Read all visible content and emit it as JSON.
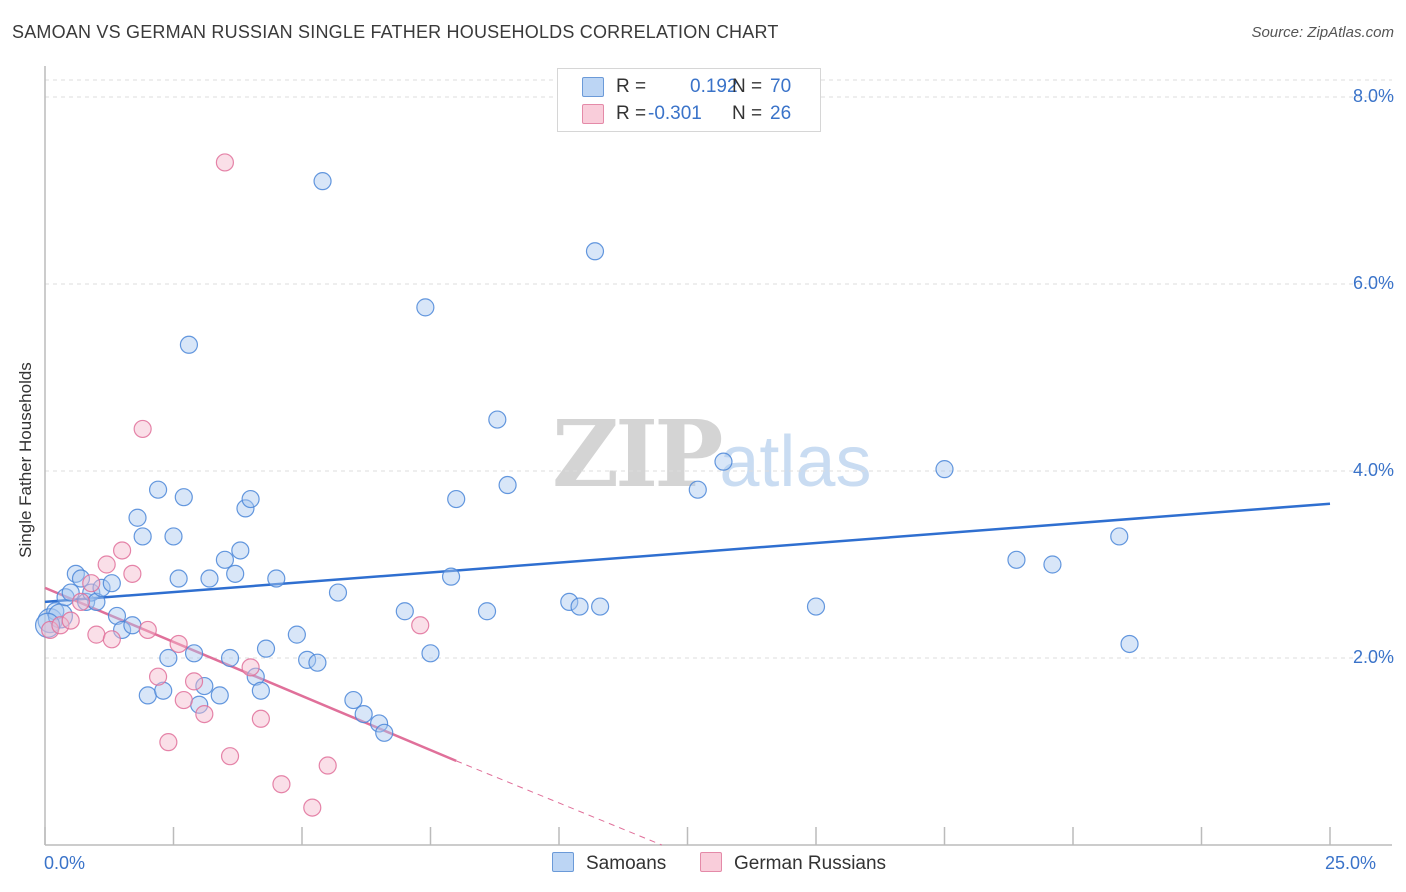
{
  "title": "SAMOAN VS GERMAN RUSSIAN SINGLE FATHER HOUSEHOLDS CORRELATION CHART",
  "source": "Source: ZipAtlas.com",
  "watermark": {
    "zip": "ZIP",
    "atlas": "atlas"
  },
  "legend": {
    "rows": [
      {
        "r_label": "R =",
        "r_value": "0.192",
        "n_label": "N =",
        "n_value": "70",
        "color": "#a9c8f0"
      },
      {
        "r_label": "R =",
        "r_value": "-0.301",
        "n_label": "N =",
        "n_value": "26",
        "color": "#f5b8cb"
      }
    ]
  },
  "bottom_legend": [
    {
      "label": "Samoans",
      "color": "#a9c8f0"
    },
    {
      "label": "German Russians",
      "color": "#f5b8cb"
    }
  ],
  "chart_data": {
    "type": "scatter",
    "title": "SAMOAN VS GERMAN RUSSIAN SINGLE FATHER HOUSEHOLDS CORRELATION CHART",
    "xlabel": "",
    "ylabel": "Single Father Households",
    "xlim": [
      0,
      25
    ],
    "ylim": [
      0,
      8.3
    ],
    "x_tick_labels": [
      "0.0%",
      "25.0%"
    ],
    "y_ticks": [
      2,
      4,
      6,
      8
    ],
    "y_tick_labels": [
      "2.0%",
      "4.0%",
      "6.0%",
      "8.0%"
    ],
    "grid": true,
    "series": [
      {
        "name": "Samoans",
        "color": "#4a86d8",
        "fill": "#a9c8f0",
        "r": 0.192,
        "n": 70,
        "trend": {
          "x0": 0.0,
          "y0": 2.6,
          "x1": 25.0,
          "y1": 3.65
        },
        "points": [
          [
            0.1,
            2.4
          ],
          [
            0.2,
            2.5
          ],
          [
            0.3,
            2.45
          ],
          [
            0.4,
            2.65
          ],
          [
            0.5,
            2.7
          ],
          [
            0.6,
            2.9
          ],
          [
            0.7,
            2.85
          ],
          [
            0.8,
            2.6
          ],
          [
            0.9,
            2.7
          ],
          [
            1.0,
            2.6
          ],
          [
            1.1,
            2.75
          ],
          [
            1.3,
            2.8
          ],
          [
            1.4,
            2.45
          ],
          [
            1.5,
            2.3
          ],
          [
            1.7,
            2.35
          ],
          [
            1.8,
            3.5
          ],
          [
            1.9,
            3.3
          ],
          [
            2.0,
            1.6
          ],
          [
            2.2,
            3.8
          ],
          [
            2.3,
            1.65
          ],
          [
            2.4,
            2.0
          ],
          [
            2.5,
            3.3
          ],
          [
            2.6,
            2.85
          ],
          [
            2.7,
            3.72
          ],
          [
            2.8,
            5.35
          ],
          [
            2.9,
            2.05
          ],
          [
            3.0,
            1.5
          ],
          [
            3.1,
            1.7
          ],
          [
            3.2,
            2.85
          ],
          [
            3.4,
            1.6
          ],
          [
            3.5,
            3.05
          ],
          [
            3.6,
            2.0
          ],
          [
            3.7,
            2.9
          ],
          [
            3.8,
            3.15
          ],
          [
            3.9,
            3.6
          ],
          [
            4.0,
            3.7
          ],
          [
            4.1,
            1.8
          ],
          [
            4.2,
            1.65
          ],
          [
            4.3,
            2.1
          ],
          [
            4.5,
            2.85
          ],
          [
            4.9,
            2.25
          ],
          [
            5.1,
            1.98
          ],
          [
            5.3,
            1.95
          ],
          [
            5.4,
            7.1
          ],
          [
            5.7,
            2.7
          ],
          [
            6.0,
            1.55
          ],
          [
            6.2,
            1.4
          ],
          [
            6.5,
            1.3
          ],
          [
            6.6,
            1.2
          ],
          [
            7.0,
            2.5
          ],
          [
            7.4,
            5.75
          ],
          [
            7.5,
            2.05
          ],
          [
            7.9,
            2.87
          ],
          [
            8.0,
            3.7
          ],
          [
            8.6,
            2.5
          ],
          [
            8.8,
            4.55
          ],
          [
            9.0,
            3.85
          ],
          [
            10.2,
            2.6
          ],
          [
            10.4,
            2.55
          ],
          [
            10.7,
            6.35
          ],
          [
            10.8,
            2.55
          ],
          [
            12.7,
            3.8
          ],
          [
            13.2,
            4.1
          ],
          [
            15.0,
            2.55
          ],
          [
            17.5,
            4.02
          ],
          [
            18.9,
            3.05
          ],
          [
            19.6,
            3.0
          ],
          [
            20.9,
            3.3
          ],
          [
            21.1,
            2.15
          ],
          [
            0.05,
            2.35
          ]
        ]
      },
      {
        "name": "German Russians",
        "color": "#e0709a",
        "fill": "#f5b8cb",
        "r": -0.301,
        "n": 26,
        "trend": {
          "x0": 0.0,
          "y0": 2.75,
          "x1": 8.0,
          "y1": 0.9,
          "dashed_x1": 12.0,
          "dashed_y1": 0.0
        },
        "points": [
          [
            0.1,
            2.3
          ],
          [
            0.3,
            2.35
          ],
          [
            0.5,
            2.4
          ],
          [
            0.7,
            2.6
          ],
          [
            0.9,
            2.8
          ],
          [
            1.0,
            2.25
          ],
          [
            1.2,
            3.0
          ],
          [
            1.3,
            2.2
          ],
          [
            1.5,
            3.15
          ],
          [
            1.7,
            2.9
          ],
          [
            1.9,
            4.45
          ],
          [
            2.0,
            2.3
          ],
          [
            2.2,
            1.8
          ],
          [
            2.4,
            1.1
          ],
          [
            2.6,
            2.15
          ],
          [
            2.7,
            1.55
          ],
          [
            2.9,
            1.75
          ],
          [
            3.1,
            1.4
          ],
          [
            3.5,
            7.3
          ],
          [
            3.6,
            0.95
          ],
          [
            4.0,
            1.9
          ],
          [
            4.2,
            1.35
          ],
          [
            4.6,
            0.65
          ],
          [
            5.2,
            0.4
          ],
          [
            5.5,
            0.85
          ],
          [
            7.3,
            2.35
          ]
        ]
      }
    ]
  }
}
